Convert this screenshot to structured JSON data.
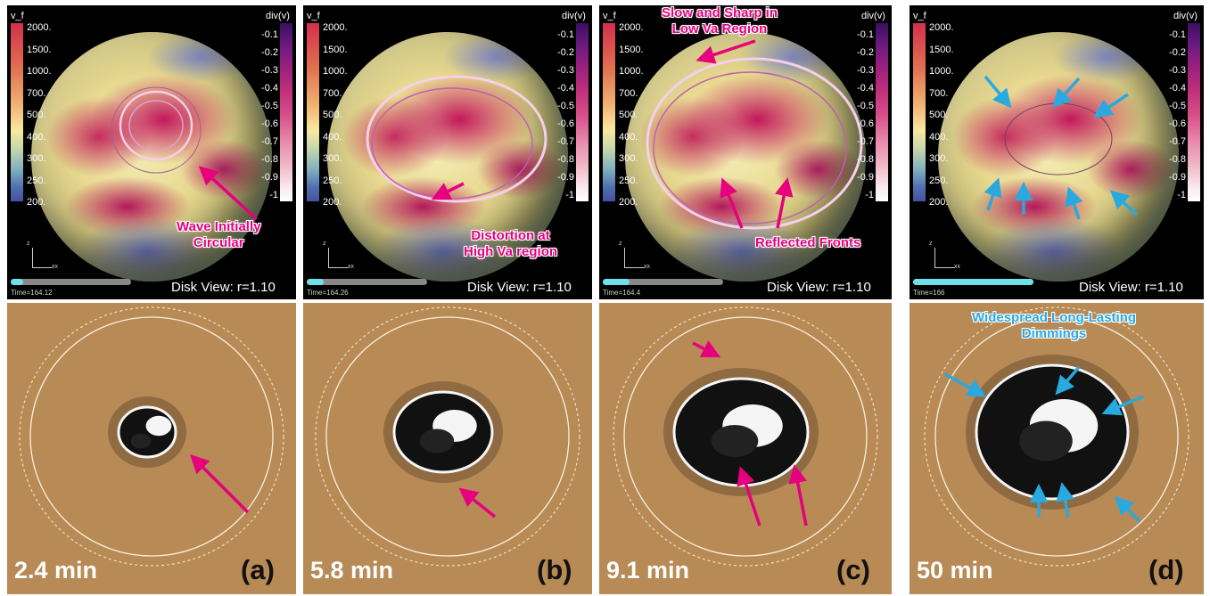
{
  "panels": [
    {
      "id": "a",
      "vf_label": "v_f",
      "div_label": "div(v)",
      "time_label": "Time=164.12",
      "time_fraction": 0.1,
      "disk_view": "Disk View: r=1.10",
      "annotation": [
        "Wave Initially",
        "Circular"
      ],
      "elapsed": "2.4 min",
      "letter": "(a)"
    },
    {
      "id": "b",
      "vf_label": "v_f",
      "div_label": "div(v)",
      "time_label": "Time=164.26",
      "time_fraction": 0.14,
      "disk_view": "Disk View: r=1.10",
      "annotation": [
        "Distortion at",
        "High Va region"
      ],
      "elapsed": "5.8 min",
      "letter": "(b)"
    },
    {
      "id": "c",
      "vf_label": "v_f",
      "div_label": "div(v)",
      "time_label": "Time=164.4",
      "time_fraction": 0.22,
      "disk_view": "Disk View: r=1.10",
      "annotation_top": [
        "Slow and Sharp in",
        "Low Va Region"
      ],
      "annotation": [
        "Reflected Fronts"
      ],
      "elapsed": "9.1 min",
      "letter": "(c)"
    },
    {
      "id": "d",
      "vf_label": "v_f",
      "div_label": "div(v)",
      "time_label": "Time=166",
      "time_fraction": 1.0,
      "disk_view": "Disk View: r=1.10",
      "annotation_bottom": [
        "Widespread Long-Lasting",
        "Dimmings"
      ],
      "elapsed": "50 min",
      "letter": "(d)"
    }
  ],
  "vf_ticks": [
    "2000.",
    "1500.",
    "1000.",
    "700.",
    "500.",
    "400.",
    "300.",
    "250.",
    "200."
  ],
  "div_ticks": [
    "-0.1",
    "-0.2",
    "-0.3",
    "-0.4",
    "-0.5",
    "-0.6",
    "-0.7",
    "-0.8",
    "-0.9",
    "-1"
  ],
  "axis_labels": {
    "z": "z",
    "x": "xx"
  },
  "colors": {
    "magenta_annotation": "#e6007e",
    "blue_annotation": "#2aa8e0",
    "dimming_background": "#b88a55",
    "time_bar_fill": "#6fe0e8"
  }
}
